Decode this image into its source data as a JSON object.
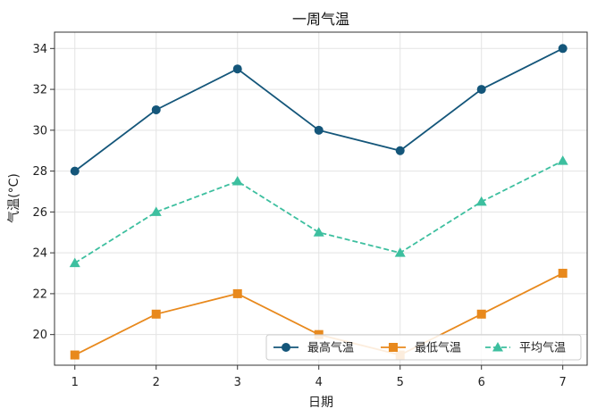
{
  "chart_data": {
    "type": "line",
    "title": "一周气温",
    "xlabel": "日期",
    "ylabel": "气温(°C)",
    "x": [
      1,
      2,
      3,
      4,
      5,
      6,
      7
    ],
    "xlim": [
      0.75,
      7.3
    ],
    "ylim": [
      18.5,
      34.8
    ],
    "xticks": [
      1,
      2,
      3,
      4,
      5,
      6,
      7
    ],
    "yticks": [
      20,
      22,
      24,
      26,
      28,
      30,
      32,
      34
    ],
    "grid": true,
    "legend_position": "lower-right",
    "series": [
      {
        "name": "最高气温",
        "values": [
          28,
          31,
          33,
          30,
          29,
          32,
          34
        ],
        "color": "#14567a",
        "marker": "circle",
        "linestyle": "solid"
      },
      {
        "name": "最低气温",
        "values": [
          19,
          21,
          22,
          20,
          19,
          21,
          23
        ],
        "color": "#e8891d",
        "marker": "square",
        "linestyle": "solid"
      },
      {
        "name": "平均气温",
        "values": [
          23.5,
          26,
          27.5,
          25,
          24,
          26.5,
          28.5
        ],
        "color": "#3dbf9f",
        "marker": "triangle",
        "linestyle": "dashed"
      }
    ]
  }
}
